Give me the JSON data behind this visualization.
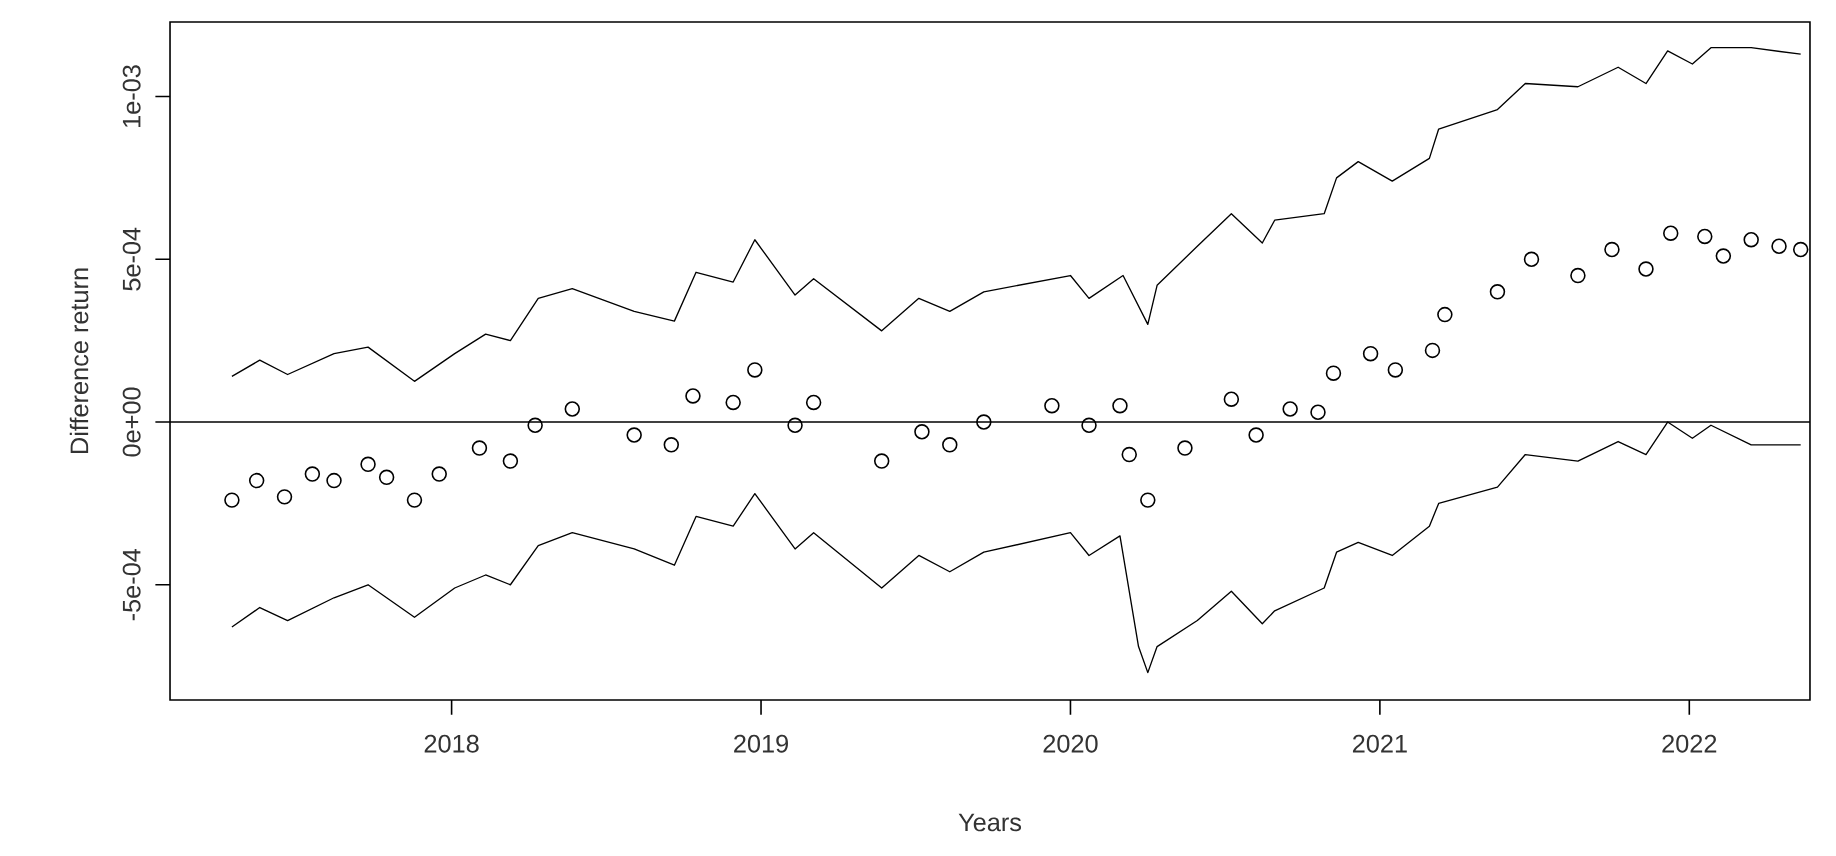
{
  "chart_data": {
    "type": "line",
    "xlabel": "Years",
    "ylabel": "Difference return",
    "xlim": [
      2017.09,
      2022.39
    ],
    "ylim": [
      -0.000854,
      0.001229
    ],
    "xticks": [
      2018,
      2019,
      2020,
      2021,
      2022
    ],
    "yticks": [
      {
        "value": -0.0005,
        "label": "-5e-04"
      },
      {
        "value": 0,
        "label": "0e+00"
      },
      {
        "value": 0.0005,
        "label": "5e-04"
      },
      {
        "value": 0.001,
        "label": "1e-03"
      }
    ],
    "ref_lines": [
      {
        "axis": "y",
        "value": 0,
        "color": "#000000"
      }
    ],
    "series": [
      {
        "type": "scatter",
        "marker": "circle",
        "color": "#000000",
        "x": [
          2017.29,
          2017.37,
          2017.46,
          2017.55,
          2017.62,
          2017.73,
          2017.79,
          2017.88,
          2017.96,
          2018.09,
          2018.19,
          2018.27,
          2018.39,
          2018.59,
          2018.71,
          2018.78,
          2018.91,
          2018.98,
          2019.11,
          2019.17,
          2019.39,
          2019.52,
          2019.61,
          2019.72,
          2019.94,
          2020.06,
          2020.16,
          2020.19,
          2020.25,
          2020.37,
          2020.52,
          2020.6,
          2020.71,
          2020.8,
          2020.85,
          2020.97,
          2021.05,
          2021.17,
          2021.21,
          2021.38,
          2021.49,
          2021.64,
          2021.75,
          2021.86,
          2021.94,
          2022.05,
          2022.11,
          2022.2,
          2022.29,
          2022.36
        ],
        "values": [
          -0.00024,
          -0.00018,
          -0.00023,
          -0.00016,
          -0.00018,
          -0.00013,
          -0.00017,
          -0.00024,
          -0.00016,
          -8e-05,
          -0.00012,
          -1e-05,
          4e-05,
          -4e-05,
          -7e-05,
          8e-05,
          6e-05,
          0.00016,
          -1e-05,
          6e-05,
          -0.00012,
          -3e-05,
          -7e-05,
          0.0,
          5e-05,
          -1e-05,
          5e-05,
          -0.0001,
          -0.00024,
          -8e-05,
          7e-05,
          -4e-05,
          4e-05,
          3e-05,
          0.00015,
          0.00021,
          0.00016,
          0.00022,
          0.00033,
          0.0004,
          0.0005,
          0.00045,
          0.00053,
          0.00047,
          0.00058,
          0.00057,
          0.00051,
          0.00056,
          0.00054,
          0.00053
        ]
      },
      {
        "marker": "none",
        "color": "#000000",
        "x": [
          2017.29,
          2017.38,
          2017.47,
          2017.62,
          2017.73,
          2017.88,
          2018.01,
          2018.11,
          2018.19,
          2018.28,
          2018.39,
          2018.59,
          2018.72,
          2018.79,
          2018.91,
          2018.98,
          2019.11,
          2019.17,
          2019.39,
          2019.51,
          2019.61,
          2019.72,
          2020.0,
          2020.06,
          2020.17,
          2020.25,
          2020.28,
          2020.41,
          2020.52,
          2020.62,
          2020.66,
          2020.82,
          2020.86,
          2020.93,
          2021.04,
          2021.16,
          2021.19,
          2021.38,
          2021.47,
          2021.64,
          2021.77,
          2021.86,
          2021.93,
          2022.01,
          2022.07,
          2022.2,
          2022.36
        ],
        "values": [
          0.00014,
          0.00019,
          0.000146,
          0.00021,
          0.00023,
          0.000125,
          0.00021,
          0.00027,
          0.00025,
          0.00038,
          0.00041,
          0.00034,
          0.00031,
          0.00046,
          0.00043,
          0.00056,
          0.00039,
          0.00044,
          0.00028,
          0.00038,
          0.00034,
          0.0004,
          0.00045,
          0.00038,
          0.00045,
          0.0003,
          0.00042,
          0.00054,
          0.00064,
          0.00055,
          0.00062,
          0.00064,
          0.00075,
          0.0008,
          0.00074,
          0.00081,
          0.0009,
          0.00096,
          0.00104,
          0.00103,
          0.00109,
          0.00104,
          0.00114,
          0.0011,
          0.00115,
          0.00115,
          0.00113
        ]
      },
      {
        "marker": "none",
        "color": "#000000",
        "x": [
          2017.29,
          2017.38,
          2017.47,
          2017.62,
          2017.73,
          2017.88,
          2018.01,
          2018.11,
          2018.19,
          2018.28,
          2018.39,
          2018.59,
          2018.72,
          2018.79,
          2018.91,
          2018.98,
          2019.11,
          2019.17,
          2019.39,
          2019.51,
          2019.61,
          2019.72,
          2020.0,
          2020.06,
          2020.16,
          2020.22,
          2020.25,
          2020.28,
          2020.41,
          2020.52,
          2020.62,
          2020.66,
          2020.82,
          2020.86,
          2020.93,
          2021.04,
          2021.16,
          2021.19,
          2021.38,
          2021.47,
          2021.64,
          2021.77,
          2021.86,
          2021.93,
          2022.01,
          2022.07,
          2022.2,
          2022.36
        ],
        "values": [
          -0.00063,
          -0.00057,
          -0.00061,
          -0.00054,
          -0.0005,
          -0.0006,
          -0.00051,
          -0.00047,
          -0.0005,
          -0.00038,
          -0.00034,
          -0.00039,
          -0.00044,
          -0.00029,
          -0.00032,
          -0.00022,
          -0.00039,
          -0.00034,
          -0.00051,
          -0.00041,
          -0.00046,
          -0.0004,
          -0.00034,
          -0.00041,
          -0.00035,
          -0.00069,
          -0.00077,
          -0.00069,
          -0.00061,
          -0.00052,
          -0.00062,
          -0.00058,
          -0.00051,
          -0.0004,
          -0.00037,
          -0.00041,
          -0.00032,
          -0.00025,
          -0.0002,
          -0.0001,
          -0.00012,
          -6e-05,
          -0.0001,
          0.0,
          -5e-05,
          -1e-05,
          -7e-05,
          -7e-05
        ]
      }
    ]
  }
}
